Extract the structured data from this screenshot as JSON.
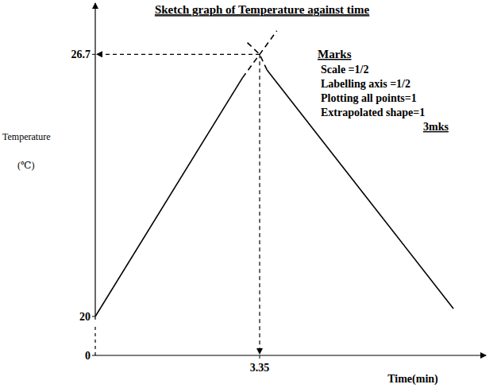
{
  "chart_data": {
    "type": "line",
    "title": "Sketch graph of Temperature against time",
    "x_label": "Time(min)",
    "y_label": "Temperature",
    "y_unit": "(℃)",
    "xlim": [
      0,
      7.8
    ],
    "ylim": [
      0,
      27.5
    ],
    "xticks": [
      3.35
    ],
    "yticks": [
      0,
      20,
      26.7
    ],
    "grid": false,
    "series": [
      {
        "x": [
          0,
          3.0
        ],
        "values": [
          20,
          26.1
        ],
        "color": "#000000",
        "line_style": "solid"
      },
      {
        "x": [
          3.0,
          3.35,
          3.7
        ],
        "values": [
          26.1,
          26.7,
          27.3
        ],
        "color": "#000000",
        "line_style": "dashed"
      },
      {
        "x": [
          3.5,
          7.3
        ],
        "values": [
          26.3,
          20.2
        ],
        "color": "#000000",
        "line_style": "solid"
      },
      {
        "x": [
          3.1,
          3.35,
          3.5
        ],
        "values": [
          27.0,
          26.7,
          26.3
        ],
        "color": "#000000",
        "line_style": "dashed"
      }
    ],
    "annotations": {
      "heading": "Marks",
      "items": [
        "Scale =1/2",
        "Labelling axis =1/2",
        "Plotting all points=1",
        "Extrapolated shape=1"
      ],
      "total": "3mks"
    }
  }
}
